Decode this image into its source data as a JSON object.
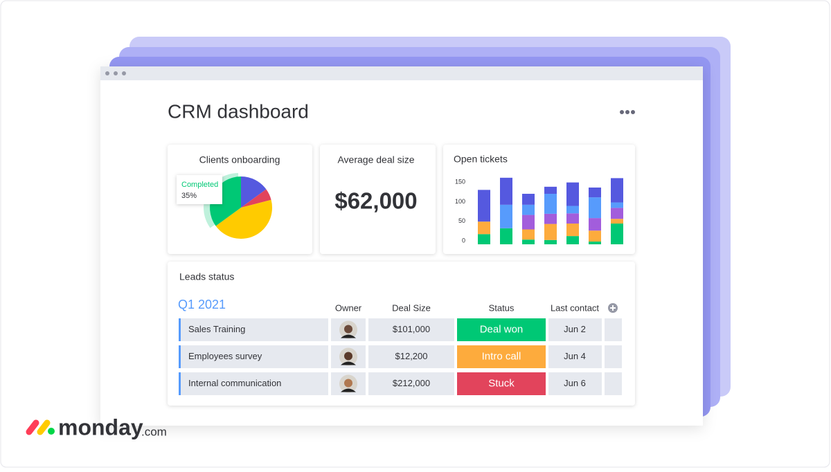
{
  "header": {
    "title": "CRM dashboard"
  },
  "cards": {
    "onboarding": "Clients onboarding",
    "deal": "Average deal size",
    "deal_value": "$62,000",
    "tickets": "Open tickets"
  },
  "chart_data": [
    {
      "type": "pie",
      "categories": [
        null,
        null,
        null,
        "Completed"
      ],
      "values": [
        15,
        6,
        44,
        35
      ],
      "value_labels": [
        null,
        null,
        null,
        "35%"
      ],
      "colors": [
        "#5559df",
        "#e2445c",
        "#ffcb00",
        "#00c875"
      ]
    },
    {
      "type": "bar",
      "stacked": true,
      "ylim": [
        0,
        175
      ],
      "yticks": [
        0,
        50,
        100,
        150
      ],
      "series": [
        {
          "color": "#00c875",
          "values": [
            26,
            41,
            12,
            11,
            21,
            7,
            53
          ]
        },
        {
          "color": "#fdab3d",
          "values": [
            32,
            0,
            26,
            41,
            32,
            28,
            12
          ]
        },
        {
          "color": "#a25ddc",
          "values": [
            0,
            0,
            37,
            26,
            26,
            32,
            28
          ]
        },
        {
          "color": "#579bfc",
          "values": [
            0,
            60,
            26,
            51,
            19,
            53,
            14
          ]
        },
        {
          "color": "#5559df",
          "values": [
            81,
            69,
            28,
            18,
            60,
            25,
            62
          ]
        }
      ]
    }
  ],
  "table": {
    "title": "Leads status",
    "group": "Q1 2021",
    "columns": [
      "Owner",
      "Deal Size",
      "Status",
      "Last contact"
    ],
    "rows": [
      [
        "Sales Training",
        "$101,000",
        "Deal won",
        "Jun 2"
      ],
      [
        "Employees survey",
        "$12,200",
        "Intro call",
        "Jun 4"
      ],
      [
        "Internal communication",
        "$212,000",
        "Stuck",
        "Jun 6"
      ]
    ]
  },
  "brand": {
    "name": "monday",
    "suffix": ".com"
  }
}
